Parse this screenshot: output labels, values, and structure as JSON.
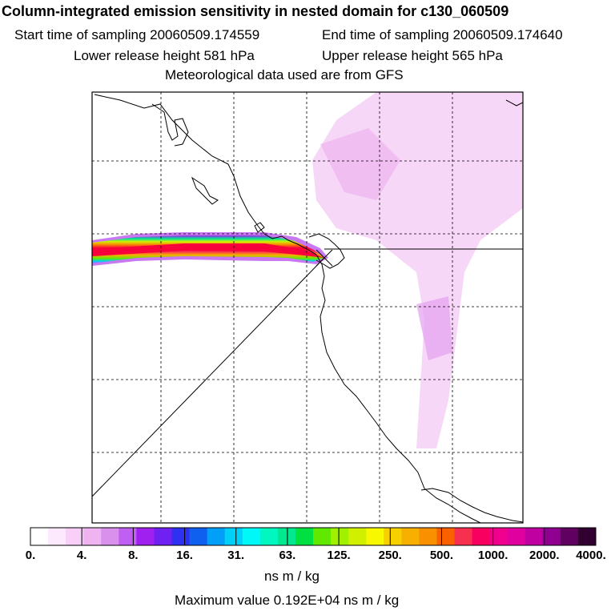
{
  "chart_data": {
    "type": "heatmap",
    "title": "Column-integrated emission sensitivity in nested domain for c130_060509",
    "subtitle": [
      "Start time of sampling 20060509.174559",
      "End time of sampling 20060509.174640",
      "Lower release height  581 hPa",
      "Upper release height  565 hPa",
      "Meteorological data used are from GFS"
    ],
    "colorbar": {
      "label": "ns m / kg",
      "tick_labels": [
        "0.",
        "4.",
        "8.",
        "16.",
        "31.",
        "63.",
        "125.",
        "250.",
        "500.",
        "1000.",
        "2000.",
        "4000."
      ],
      "ticks": [
        0,
        4,
        8,
        16,
        31,
        63,
        125,
        250,
        500,
        1000,
        2000,
        4000
      ],
      "colors": [
        "#ffffff",
        "#fde9fd",
        "#f7cff7",
        "#eeb3f0",
        "#d890ec",
        "#c060f0",
        "#a020f0",
        "#7020f0",
        "#3030f0",
        "#1060f0",
        "#00a0f8",
        "#00d0f8",
        "#00f8f8",
        "#00f8c0",
        "#00e890",
        "#00e040",
        "#60e800",
        "#a0f000",
        "#d0f000",
        "#f8f800",
        "#f8d000",
        "#f8b000",
        "#f89000",
        "#f86000",
        "#f83050",
        "#f80060",
        "#f0008c",
        "#e000a0",
        "#c000a0",
        "#900090",
        "#600060",
        "#300030"
      ]
    },
    "max_value": "Maximum value  0.192E+04 ns m / kg",
    "grid": "dashed",
    "plume": "narrow high-sensitivity band extending west from release point",
    "colors": {
      "frame": "#000000",
      "coast": "#000000",
      "plume_high": "#f8003c",
      "background_low": "#f4c8f4"
    }
  }
}
